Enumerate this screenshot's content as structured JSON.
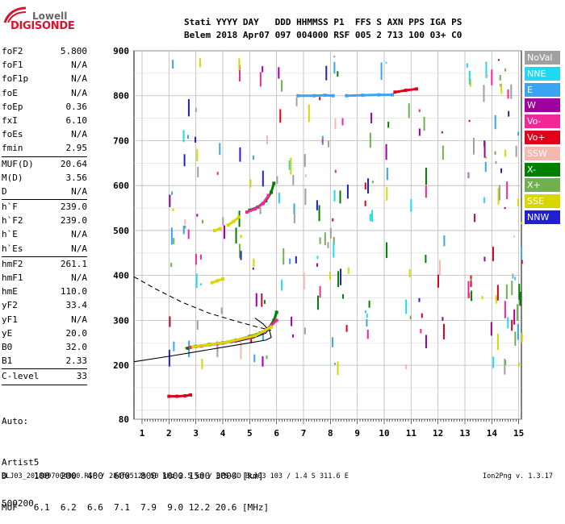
{
  "logo": {
    "top": "Lowell",
    "main": "DIGISONDE"
  },
  "header": {
    "line1": "Stati YYYY DAY   DDD HHMMSS P1  FFS S AXN PPS IGA PS",
    "line2": "Belem 2018 Apr07 097 004000 RSF 005 2 713 100 03+ C0"
  },
  "params": [
    {
      "k": "foF2",
      "v": "5.800"
    },
    {
      "k": "foF1",
      "v": "N/A"
    },
    {
      "k": "foF1p",
      "v": "N/A"
    },
    {
      "k": "foE",
      "v": "N/A"
    },
    {
      "k": "foEp",
      "v": "0.36"
    },
    {
      "k": "fxI",
      "v": "6.10"
    },
    {
      "k": "foEs",
      "v": "N/A"
    },
    {
      "k": "fmin",
      "v": "2.95"
    },
    {
      "k": "MUF(D)",
      "v": "20.64",
      "sep": true
    },
    {
      "k": "M(D)",
      "v": "3.56"
    },
    {
      "k": "D",
      "v": "N/A"
    },
    {
      "k": "h`F",
      "v": "239.0",
      "sep": true
    },
    {
      "k": "h`F2",
      "v": "239.0"
    },
    {
      "k": "h`E",
      "v": "N/A"
    },
    {
      "k": "h`Es",
      "v": "N/A"
    },
    {
      "k": "hmF2",
      "v": "261.1",
      "sep": true
    },
    {
      "k": "hmF1",
      "v": "N/A"
    },
    {
      "k": "hmE",
      "v": "110.0"
    },
    {
      "k": "yF2",
      "v": "33.4"
    },
    {
      "k": "yF1",
      "v": "N/A"
    },
    {
      "k": "yE",
      "v": "20.0"
    },
    {
      "k": "B0",
      "v": "32.0"
    },
    {
      "k": "B1",
      "v": "2.33"
    },
    {
      "k": "C-level",
      "v": "33",
      "sep": true
    }
  ],
  "autoscaling": [
    "Auto:",
    "Artist5",
    "500200"
  ],
  "legend": [
    {
      "label": "NoVal",
      "color": "#a0a0a0"
    },
    {
      "label": "NNE",
      "color": "#22d8f0"
    },
    {
      "label": "E",
      "color": "#3aa4f2"
    },
    {
      "label": "W",
      "color": "#a000a0"
    },
    {
      "label": "Vo-",
      "color": "#f02898"
    },
    {
      "label": "Vo+",
      "color": "#e0001c"
    },
    {
      "label": "SSW",
      "color": "#f4b8b0"
    },
    {
      "label": "X-",
      "color": "#008000"
    },
    {
      "label": "X+",
      "color": "#70b050"
    },
    {
      "label": "SSE",
      "color": "#d8d800"
    },
    {
      "label": "NNW",
      "color": "#2020d0"
    }
  ],
  "muf_table": {
    "line1": "D     100  200  400  600  800 1000 1500 3000 [km]",
    "line2": "MUF   6.1  6.2  6.6  7.1  7.9  9.0 12.2 20.6 [MHz]"
  },
  "footer": "BLJ03_2018097004000.RSF / 284fx512h 50 kHz 2.5 km / DPS-4D BLJ03 103 / 1.4 S 311.6 E",
  "version": "Ion2Png v. 1.3.17",
  "chart_data": {
    "type": "scatter",
    "title": "",
    "xlabel": "",
    "ylabel": "",
    "xlim": [
      0.7,
      15.1
    ],
    "ylim": [
      80,
      900
    ],
    "xticks": [
      1,
      2,
      3,
      4,
      5,
      6,
      7,
      8,
      9,
      10,
      11,
      12,
      13,
      14,
      15
    ],
    "xtick_labels": [
      "1",
      "2",
      "3",
      "4",
      "5",
      "6",
      "7",
      "8",
      "9",
      "10",
      "11",
      "12",
      "13",
      "14",
      "15"
    ],
    "yticks": [
      80,
      200,
      300,
      400,
      500,
      600,
      700,
      800,
      900
    ],
    "ytick_labels": [
      "80",
      "200",
      "300",
      "400",
      "500",
      "600",
      "700",
      "800",
      "900"
    ],
    "grid": true,
    "legend": "right",
    "traces": [
      {
        "name": "X-",
        "color": "#008000",
        "points": [
          [
            2.7,
            238
          ],
          [
            3.0,
            242
          ],
          [
            3.5,
            246
          ],
          [
            4.0,
            250
          ],
          [
            4.5,
            256
          ],
          [
            5.0,
            264
          ],
          [
            5.4,
            272
          ],
          [
            5.7,
            282
          ],
          [
            5.9,
            300
          ],
          [
            6.0,
            318
          ]
        ]
      },
      {
        "name": "Vo-",
        "color": "#f02898",
        "points": [
          [
            2.8,
            240
          ],
          [
            3.2,
            243
          ],
          [
            3.8,
            248
          ],
          [
            4.4,
            254
          ],
          [
            5.0,
            262
          ],
          [
            5.5,
            274
          ],
          [
            5.8,
            288
          ],
          [
            6.0,
            300
          ]
        ]
      },
      {
        "name": "SSE",
        "color": "#d8d800",
        "points": [
          [
            2.9,
            241
          ],
          [
            4.2,
            252
          ],
          [
            5.2,
            266
          ],
          [
            5.8,
            285
          ]
        ]
      },
      {
        "name": "X-",
        "color": "#008000",
        "points": [
          [
            5.0,
            545
          ],
          [
            5.3,
            552
          ],
          [
            5.6,
            566
          ],
          [
            5.8,
            585
          ],
          [
            5.9,
            605
          ]
        ]
      },
      {
        "name": "Vo-",
        "color": "#f02898",
        "points": [
          [
            4.9,
            541
          ],
          [
            5.2,
            548
          ],
          [
            5.5,
            560
          ],
          [
            5.7,
            578
          ]
        ]
      },
      {
        "name": "SSE",
        "color": "#d8d800",
        "points": [
          [
            4.2,
            512
          ],
          [
            4.4,
            520
          ],
          [
            4.6,
            530
          ]
        ]
      },
      {
        "name": "SSE",
        "color": "#d8d800",
        "points": [
          [
            3.6,
            384
          ],
          [
            3.8,
            388
          ],
          [
            4.0,
            392
          ]
        ]
      },
      {
        "name": "SSE",
        "color": "#d8d800",
        "points": [
          [
            3.7,
            500
          ],
          [
            3.9,
            504
          ]
        ]
      },
      {
        "name": "Vo+",
        "color": "#e0001c",
        "points": [
          [
            2.0,
            131
          ],
          [
            2.3,
            131
          ],
          [
            2.6,
            132
          ],
          [
            2.8,
            134
          ]
        ]
      },
      {
        "name": "E",
        "color": "#3aa4f2",
        "points": [
          [
            6.8,
            800
          ],
          [
            7.4,
            800
          ],
          [
            7.8,
            801
          ],
          [
            8.1,
            800
          ]
        ]
      },
      {
        "name": "E",
        "color": "#3aa4f2",
        "points": [
          [
            8.6,
            800
          ],
          [
            9.2,
            801
          ],
          [
            9.8,
            802
          ],
          [
            10.3,
            802
          ]
        ]
      },
      {
        "name": "Vo+",
        "color": "#e0001c",
        "points": [
          [
            10.4,
            808
          ],
          [
            10.8,
            812
          ],
          [
            11.2,
            815
          ]
        ]
      }
    ],
    "curves": [
      {
        "name": "model profile",
        "style": "solid",
        "points": [
          [
            0.7,
            208
          ],
          [
            2.0,
            220
          ],
          [
            3.0,
            230
          ],
          [
            4.0,
            240
          ],
          [
            5.0,
            250
          ],
          [
            5.6,
            256
          ],
          [
            5.8,
            262
          ],
          [
            5.75,
            275
          ],
          [
            5.5,
            292
          ],
          [
            5.2,
            305
          ]
        ]
      },
      {
        "name": "model profile",
        "style": "solid",
        "points": [
          [
            2.6,
            238
          ],
          [
            3.5,
            244
          ],
          [
            4.5,
            252
          ],
          [
            5.2,
            262
          ],
          [
            5.6,
            272
          ],
          [
            5.85,
            290
          ],
          [
            5.95,
            315
          ]
        ]
      },
      {
        "name": "model profile",
        "style": "dashed",
        "points": [
          [
            0.7,
            397
          ],
          [
            1.5,
            370
          ],
          [
            2.5,
            340
          ],
          [
            3.5,
            316
          ],
          [
            4.5,
            298
          ],
          [
            5.3,
            285
          ],
          [
            5.8,
            278
          ]
        ]
      }
    ]
  }
}
